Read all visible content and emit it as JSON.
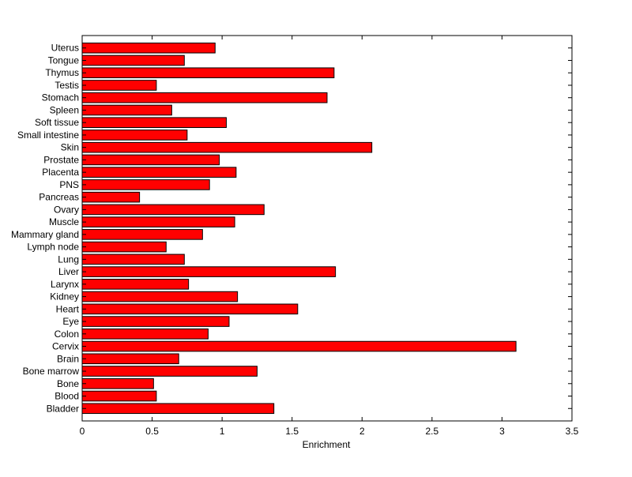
{
  "chart_data": {
    "type": "bar",
    "orientation": "horizontal",
    "title": "",
    "xlabel": "Enrichment",
    "ylabel": "",
    "xlim": [
      0,
      3.5
    ],
    "xticks": [
      0,
      0.5,
      1,
      1.5,
      2,
      2.5,
      3,
      3.5
    ],
    "xtick_labels": [
      "0",
      "0.5",
      "1",
      "1.5",
      "2",
      "2.5",
      "3",
      "3.5"
    ],
    "grid": false,
    "bar_color": "#ff0000",
    "edge_color": "#000000",
    "categories": [
      "Bladder",
      "Blood",
      "Bone",
      "Bone marrow",
      "Brain",
      "Cervix",
      "Colon",
      "Eye",
      "Heart",
      "Kidney",
      "Larynx",
      "Liver",
      "Lung",
      "Lymph node",
      "Mammary gland",
      "Muscle",
      "Ovary",
      "Pancreas",
      "PNS",
      "Placenta",
      "Prostate",
      "Skin",
      "Small intestine",
      "Soft tissue",
      "Spleen",
      "Stomach",
      "Testis",
      "Thymus",
      "Tongue",
      "Uterus"
    ],
    "values": [
      1.37,
      0.53,
      0.51,
      1.25,
      0.69,
      3.1,
      0.9,
      1.05,
      1.54,
      1.11,
      0.76,
      1.81,
      0.73,
      0.6,
      0.86,
      1.09,
      1.3,
      0.41,
      0.91,
      1.1,
      0.98,
      2.07,
      0.75,
      1.03,
      0.64,
      1.75,
      0.53,
      1.8,
      0.73,
      0.95
    ]
  }
}
